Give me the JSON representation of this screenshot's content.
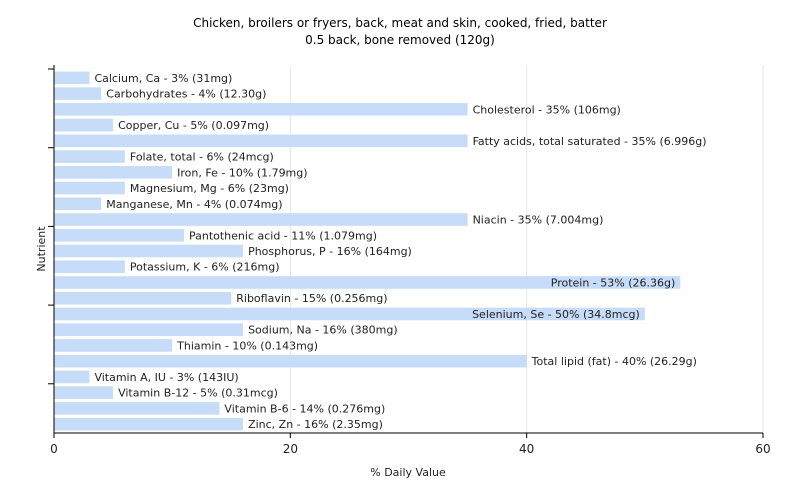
{
  "chart_data": {
    "type": "bar",
    "orientation": "horizontal",
    "title": "Chicken, broilers or fryers, back, meat and skin, cooked, fried, batter",
    "subtitle": "0.5 back, bone removed (120g)",
    "xlabel": "% Daily Value",
    "ylabel": "Nutrient",
    "xlim": [
      0,
      60
    ],
    "xticks": [
      0,
      20,
      40,
      60
    ],
    "grid": true,
    "bar_color": "#c6dcf8",
    "categories": [
      "Calcium, Ca",
      "Carbohydrates",
      "Cholesterol",
      "Copper, Cu",
      "Fatty acids, total saturated",
      "Folate, total",
      "Iron, Fe",
      "Magnesium, Mg",
      "Manganese, Mn",
      "Niacin",
      "Pantothenic acid",
      "Phosphorus, P",
      "Potassium, K",
      "Protein",
      "Riboflavin",
      "Selenium, Se",
      "Sodium, Na",
      "Thiamin",
      "Total lipid (fat)",
      "Vitamin A, IU",
      "Vitamin B-12",
      "Vitamin B-6",
      "Zinc, Zn"
    ],
    "values": [
      3,
      4,
      35,
      5,
      35,
      6,
      10,
      6,
      4,
      35,
      11,
      16,
      6,
      53,
      15,
      50,
      16,
      10,
      40,
      3,
      5,
      14,
      16
    ],
    "labels": [
      "Calcium, Ca - 3% (31mg)",
      "Carbohydrates - 4% (12.30g)",
      "Cholesterol - 35% (106mg)",
      "Copper, Cu - 5% (0.097mg)",
      "Fatty acids, total saturated - 35% (6.996g)",
      "Folate, total - 6% (24mcg)",
      "Iron, Fe - 10% (1.79mg)",
      "Magnesium, Mg - 6% (23mg)",
      "Manganese, Mn - 4% (0.074mg)",
      "Niacin - 35% (7.004mg)",
      "Pantothenic acid - 11% (1.079mg)",
      "Phosphorus, P - 16% (164mg)",
      "Potassium, K - 6% (216mg)",
      "Protein - 53% (26.36g)",
      "Riboflavin - 15% (0.256mg)",
      "Selenium, Se - 50% (34.8mcg)",
      "Sodium, Na - 16% (380mg)",
      "Thiamin - 10% (0.143mg)",
      "Total lipid (fat) - 40% (26.29g)",
      "Vitamin A, IU - 3% (143IU)",
      "Vitamin B-12 - 5% (0.31mcg)",
      "Vitamin B-6 - 14% (0.276mg)",
      "Zinc, Zn - 16% (2.35mg)"
    ]
  }
}
